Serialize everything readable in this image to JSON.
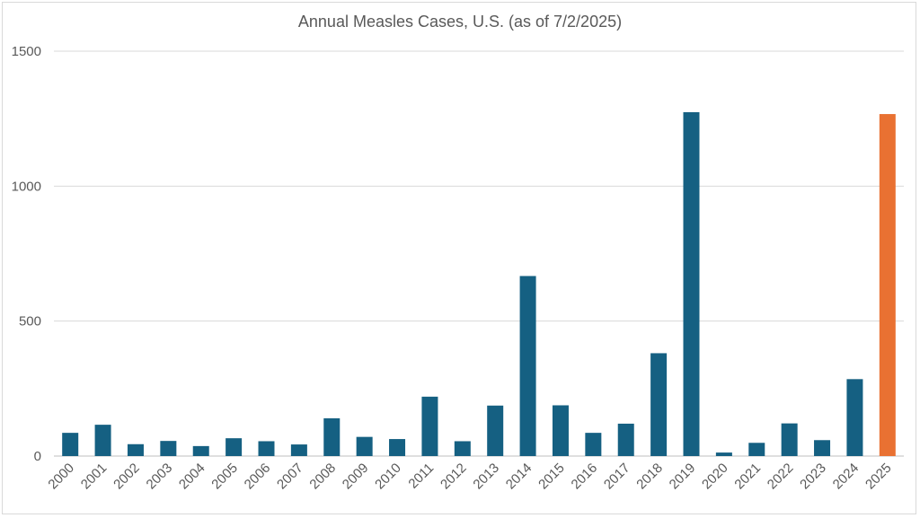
{
  "chart_data": {
    "type": "bar",
    "title": "Annual Measles Cases, U.S. (as of 7/2/2025)",
    "xlabel": "",
    "ylabel": "",
    "ylim": [
      0,
      1500
    ],
    "yticks": [
      0,
      500,
      1000,
      1500
    ],
    "grid": true,
    "categories": [
      "2000",
      "2001",
      "2002",
      "2003",
      "2004",
      "2005",
      "2006",
      "2007",
      "2008",
      "2009",
      "2010",
      "2011",
      "2012",
      "2013",
      "2014",
      "2015",
      "2016",
      "2017",
      "2018",
      "2019",
      "2020",
      "2021",
      "2022",
      "2023",
      "2024",
      "2025"
    ],
    "values": [
      86,
      116,
      44,
      56,
      37,
      66,
      55,
      43,
      140,
      71,
      63,
      220,
      55,
      187,
      667,
      188,
      86,
      120,
      381,
      1274,
      13,
      49,
      121,
      59,
      285,
      1267
    ],
    "colors": {
      "default": "#156082",
      "highlight": "#e97132",
      "highlight_category": "2025"
    }
  }
}
